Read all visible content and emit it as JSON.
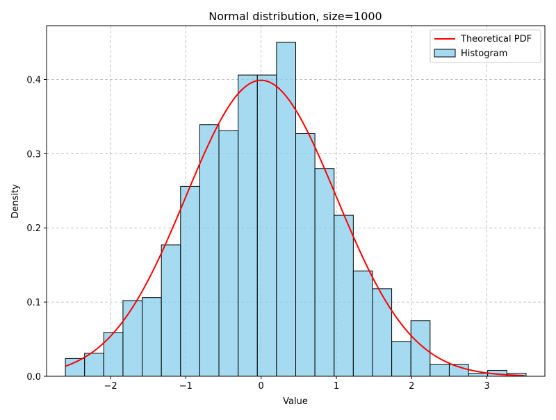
{
  "chart_data": {
    "type": "bar",
    "title": "Normal distribution, size=1000",
    "xlabel": "Value",
    "ylabel": "Density",
    "xlim": [
      -2.85,
      3.77
    ],
    "ylim": [
      0,
      0.4725
    ],
    "grid": true,
    "legend_position": "top-right",
    "xticks": [
      -2,
      -1,
      0,
      1,
      2,
      3
    ],
    "xtick_labels": [
      "−2",
      "−1",
      "0",
      "1",
      "2",
      "3"
    ],
    "yticks": [
      0.0,
      0.1,
      0.2,
      0.3,
      0.4
    ],
    "ytick_labels": [
      "0.0",
      "0.1",
      "0.2",
      "0.3",
      "0.4"
    ],
    "series": [
      {
        "name": "Histogram",
        "kind": "histogram",
        "color": "#87ceeb",
        "edge_color": "#000000",
        "bin_edges": [
          -2.6,
          -2.345,
          -2.09,
          -1.835,
          -1.58,
          -1.325,
          -1.07,
          -0.815,
          -0.56,
          -0.305,
          -0.05,
          0.205,
          0.46,
          0.715,
          0.97,
          1.225,
          1.48,
          1.735,
          1.99,
          2.245,
          2.5,
          2.755,
          3.01,
          3.265,
          3.52
        ],
        "values": [
          0.024,
          0.031,
          0.059,
          0.102,
          0.106,
          0.177,
          0.256,
          0.339,
          0.331,
          0.406,
          0.406,
          0.45,
          0.327,
          0.28,
          0.217,
          0.142,
          0.118,
          0.047,
          0.075,
          0.016,
          0.016,
          0.004,
          0.008,
          0.004
        ]
      },
      {
        "name": "Theoretical PDF",
        "kind": "line",
        "color": "#ff0000",
        "function": "standard normal pdf",
        "x_range": [
          -2.6,
          3.5
        ]
      }
    ]
  }
}
